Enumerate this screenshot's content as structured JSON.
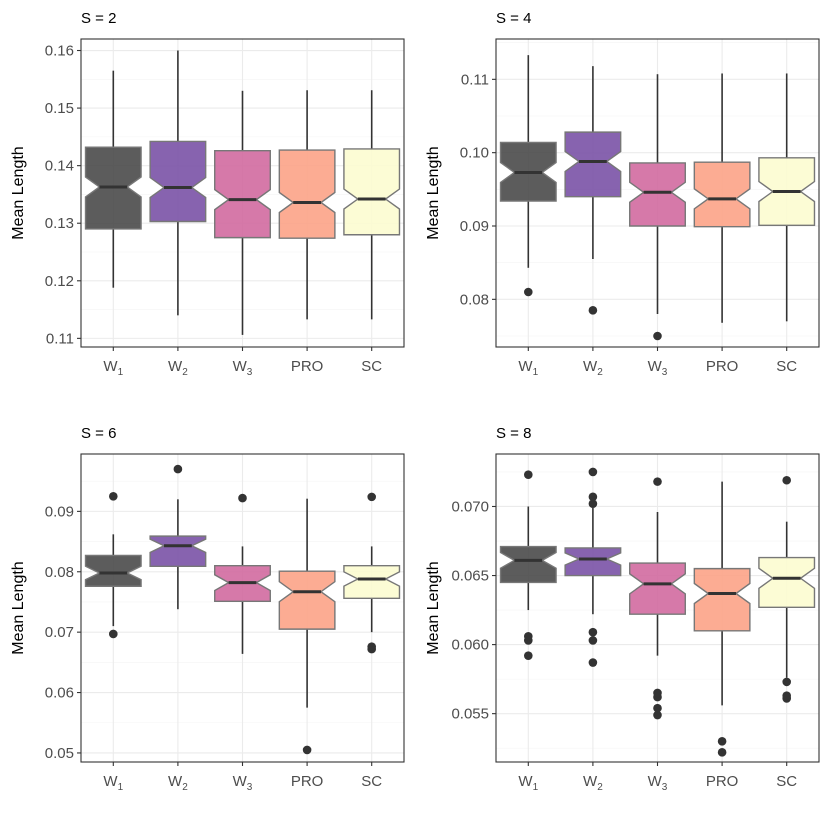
{
  "chart_data": [
    {
      "type": "box",
      "title": "S = 2",
      "ylabel": "Mean Length",
      "xlabel": "",
      "grid": true,
      "notched": true,
      "ylim": [
        0.1085,
        0.162
      ],
      "yticks": [
        0.11,
        0.12,
        0.13,
        0.14,
        0.15,
        0.16
      ],
      "ytick_labels": [
        "0.11",
        "0.12",
        "0.13",
        "0.14",
        "0.15",
        "0.16"
      ],
      "categories": [
        {
          "main": "W",
          "sub": "1"
        },
        {
          "main": "W",
          "sub": "2"
        },
        {
          "main": "W",
          "sub": "3"
        },
        {
          "main": "PRO",
          "sub": ""
        },
        {
          "main": "SC",
          "sub": ""
        }
      ],
      "boxes": [
        {
          "whislo": 0.1188,
          "q1": 0.129,
          "med": 0.1363,
          "q3": 0.1432,
          "whishi": 0.1565,
          "outliers": []
        },
        {
          "whislo": 0.114,
          "q1": 0.1303,
          "med": 0.1362,
          "q3": 0.1442,
          "whishi": 0.16,
          "outliers": []
        },
        {
          "whislo": 0.1106,
          "q1": 0.1275,
          "med": 0.1341,
          "q3": 0.1426,
          "whishi": 0.153,
          "outliers": []
        },
        {
          "whislo": 0.1133,
          "q1": 0.1274,
          "med": 0.1336,
          "q3": 0.1427,
          "whishi": 0.1531,
          "outliers": []
        },
        {
          "whislo": 0.1133,
          "q1": 0.128,
          "med": 0.1342,
          "q3": 0.1429,
          "whishi": 0.1531,
          "outliers": []
        }
      ]
    },
    {
      "type": "box",
      "title": "S = 4",
      "ylabel": "Mean Length",
      "xlabel": "",
      "grid": true,
      "notched": true,
      "ylim": [
        0.0735,
        0.1155
      ],
      "yticks": [
        0.08,
        0.09,
        0.1,
        0.11
      ],
      "ytick_labels": [
        "0.08",
        "0.09",
        "0.10",
        "0.11"
      ],
      "categories": [
        {
          "main": "W",
          "sub": "1"
        },
        {
          "main": "W",
          "sub": "2"
        },
        {
          "main": "W",
          "sub": "3"
        },
        {
          "main": "PRO",
          "sub": ""
        },
        {
          "main": "SC",
          "sub": ""
        }
      ],
      "boxes": [
        {
          "whislo": 0.0843,
          "q1": 0.0934,
          "med": 0.0973,
          "q3": 0.1014,
          "whishi": 0.1133,
          "outliers": [
            0.081
          ]
        },
        {
          "whislo": 0.0855,
          "q1": 0.094,
          "med": 0.0988,
          "q3": 0.1028,
          "whishi": 0.1118,
          "outliers": [
            0.0785
          ]
        },
        {
          "whislo": 0.078,
          "q1": 0.09,
          "med": 0.0946,
          "q3": 0.0986,
          "whishi": 0.1107,
          "outliers": [
            0.075
          ]
        },
        {
          "whislo": 0.0768,
          "q1": 0.0899,
          "med": 0.0937,
          "q3": 0.0987,
          "whishi": 0.1108,
          "outliers": []
        },
        {
          "whislo": 0.077,
          "q1": 0.0901,
          "med": 0.0947,
          "q3": 0.0993,
          "whishi": 0.1108,
          "outliers": []
        }
      ]
    },
    {
      "type": "box",
      "title": "S = 6",
      "ylabel": "Mean Length",
      "xlabel": "",
      "grid": true,
      "notched": true,
      "ylim": [
        0.0485,
        0.0995
      ],
      "yticks": [
        0.05,
        0.06,
        0.07,
        0.08,
        0.09
      ],
      "ytick_labels": [
        "0.05",
        "0.06",
        "0.07",
        "0.08",
        "0.09"
      ],
      "categories": [
        {
          "main": "W",
          "sub": "1"
        },
        {
          "main": "W",
          "sub": "2"
        },
        {
          "main": "W",
          "sub": "3"
        },
        {
          "main": "PRO",
          "sub": ""
        },
        {
          "main": "SC",
          "sub": ""
        }
      ],
      "boxes": [
        {
          "whislo": 0.071,
          "q1": 0.0776,
          "med": 0.0798,
          "q3": 0.0827,
          "whishi": 0.0862,
          "outliers": [
            0.0697,
            0.0925
          ]
        },
        {
          "whislo": 0.0738,
          "q1": 0.0809,
          "med": 0.0843,
          "q3": 0.0859,
          "whishi": 0.092,
          "outliers": [
            0.097
          ]
        },
        {
          "whislo": 0.0664,
          "q1": 0.0751,
          "med": 0.0782,
          "q3": 0.081,
          "whishi": 0.0842,
          "outliers": [
            0.0922
          ]
        },
        {
          "whislo": 0.0575,
          "q1": 0.0705,
          "med": 0.0767,
          "q3": 0.0801,
          "whishi": 0.0921,
          "outliers": [
            0.0505
          ]
        },
        {
          "whislo": 0.07,
          "q1": 0.0756,
          "med": 0.0788,
          "q3": 0.081,
          "whishi": 0.0842,
          "outliers": [
            0.0672,
            0.0676,
            0.0924
          ]
        }
      ]
    },
    {
      "type": "box",
      "title": "S = 8",
      "ylabel": "Mean Length",
      "xlabel": "",
      "grid": true,
      "notched": true,
      "ylim": [
        0.0515,
        0.0738
      ],
      "yticks": [
        0.055,
        0.06,
        0.065,
        0.07
      ],
      "ytick_labels": [
        "0.055",
        "0.060",
        "0.065",
        "0.070"
      ],
      "categories": [
        {
          "main": "W",
          "sub": "1"
        },
        {
          "main": "W",
          "sub": "2"
        },
        {
          "main": "W",
          "sub": "3"
        },
        {
          "main": "PRO",
          "sub": ""
        },
        {
          "main": "SC",
          "sub": ""
        }
      ],
      "boxes": [
        {
          "whislo": 0.0625,
          "q1": 0.0645,
          "med": 0.0661,
          "q3": 0.0671,
          "whishi": 0.07,
          "outliers": [
            0.0592,
            0.0603,
            0.0606,
            0.0723
          ]
        },
        {
          "whislo": 0.0622,
          "q1": 0.065,
          "med": 0.0662,
          "q3": 0.067,
          "whishi": 0.0699,
          "outliers": [
            0.0587,
            0.0603,
            0.0609,
            0.0702,
            0.0707,
            0.0725
          ]
        },
        {
          "whislo": 0.0592,
          "q1": 0.0622,
          "med": 0.0644,
          "q3": 0.0659,
          "whishi": 0.0696,
          "outliers": [
            0.0549,
            0.0554,
            0.0562,
            0.0565,
            0.0718
          ]
        },
        {
          "whislo": 0.0556,
          "q1": 0.061,
          "med": 0.0637,
          "q3": 0.0655,
          "whishi": 0.0718,
          "outliers": [
            0.0522,
            0.053
          ]
        },
        {
          "whislo": 0.0576,
          "q1": 0.0627,
          "med": 0.0648,
          "q3": 0.0663,
          "whishi": 0.0689,
          "outliers": [
            0.0561,
            0.0563,
            0.0573,
            0.0719
          ]
        }
      ]
    }
  ],
  "colors": {
    "fills": [
      "#4a4a4a",
      "#7a52a6",
      "#d26aa0",
      "#fca387",
      "#fcfcd0"
    ],
    "box_border": "#777777",
    "whisker": "#333333",
    "median": "#333333",
    "outlier": "#333333",
    "panel_border": "#333333",
    "grid_major": "#ebebeb",
    "grid_minor": "#f4f4f4",
    "tick_text": "#4d4d4d"
  }
}
